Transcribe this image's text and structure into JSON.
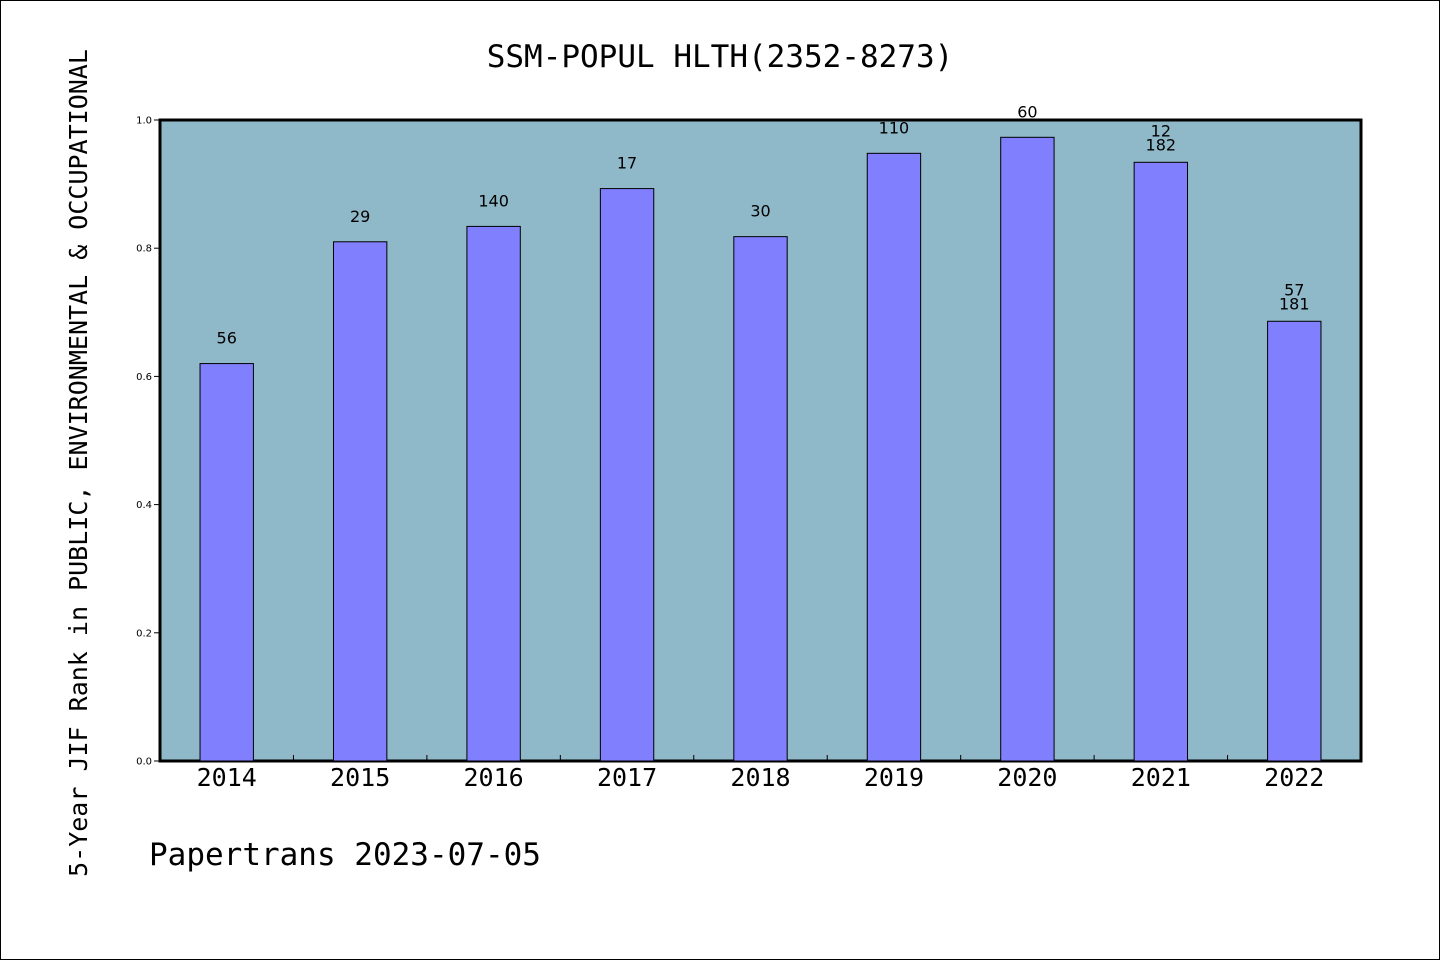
{
  "chart_data": {
    "type": "bar",
    "title": "SSM-POPUL HLTH(2352-8273)",
    "ylabel": "5-Year JIF Rank in PUBLIC, ENVIRONMENTAL & OCCUPATIONAL",
    "xlabel": "",
    "ylim": [
      0,
      1.0
    ],
    "yticks": [
      0.0,
      0.2,
      0.4,
      0.6,
      0.8,
      1.0
    ],
    "ytick_labels": [
      "0.0",
      "0.2",
      "0.4",
      "0.6",
      "0.8",
      "1.0"
    ],
    "categories": [
      "2014",
      "2015",
      "2016",
      "2017",
      "2018",
      "2019",
      "2020",
      "2021",
      "2022"
    ],
    "values": [
      0.62,
      0.81,
      0.834,
      0.893,
      0.818,
      0.948,
      0.973,
      0.934,
      0.686
    ],
    "data_labels": [
      [
        "56"
      ],
      [
        "29"
      ],
      [
        "140"
      ],
      [
        "17"
      ],
      [
        "30"
      ],
      [
        "110"
      ],
      [
        "60"
      ],
      [
        "12",
        "182"
      ],
      [
        "57",
        "181"
      ]
    ],
    "grid": false,
    "background_color": "#8fb8c8",
    "bar_color": "#8080ff"
  },
  "footer": {
    "text": "Papertrans 2023-07-05"
  }
}
